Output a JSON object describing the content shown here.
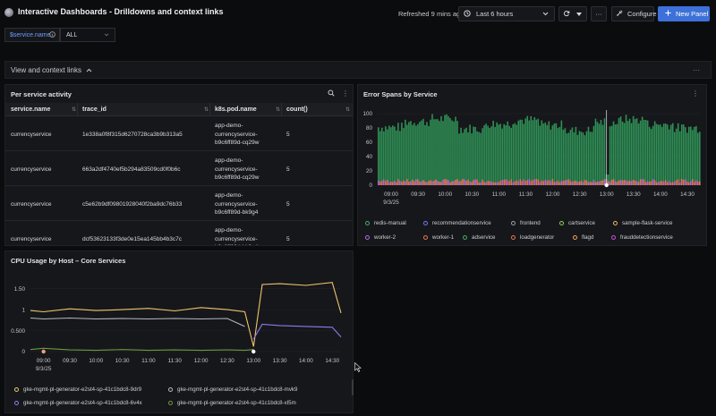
{
  "header": {
    "title": "Interactive Dashboards - Drilldowns and context links",
    "refreshed": "Refreshed 9 mins ago",
    "time_range": "Last 6 hours",
    "configure_label": "Configure",
    "new_panel_label": "New Panel"
  },
  "variables": {
    "label": "$service.name",
    "value": "ALL"
  },
  "row": {
    "title": "View and context links"
  },
  "table_panel": {
    "title": "Per service activity",
    "columns": [
      "service.name",
      "trace_id",
      "k8s.pod.name",
      "count()"
    ],
    "rows": [
      {
        "service": "currencyservice",
        "trace_id": "1e338a0f8f315d6270728ca3b9b313a5",
        "pod": [
          "app-demo-",
          "currencyservice-",
          "b9c6ff89d-cq29w"
        ],
        "count": "5"
      },
      {
        "service": "currencyservice",
        "trace_id": "663a2df4740ef5b294a83509cd0f0b6c",
        "pod": [
          "app-demo-",
          "currencyservice-",
          "b9c6ff89d-cq29w"
        ],
        "count": "5"
      },
      {
        "service": "currencyservice",
        "trace_id": "c5e62b9df09801928040f2ba9dc76b33",
        "pod": [
          "app-demo-",
          "currencyservice-",
          "b9c6ff89d-bk9g4"
        ],
        "count": "5"
      },
      {
        "service": "currencyservice",
        "trace_id": "dcf53623133f3de0e15ea145bb4b3c7c",
        "pod": [
          "app-demo-",
          "currencyservice-",
          "b9c6ff89d-bk9g4"
        ],
        "count": "5"
      }
    ]
  },
  "error_panel": {
    "title": "Error Spans by Service",
    "y_ticks": [
      "100",
      "80",
      "60",
      "40",
      "20",
      "0"
    ],
    "x_ticks": [
      "09:00",
      "09:30",
      "10:00",
      "10:30",
      "11:00",
      "11:30",
      "12:00",
      "12:30",
      "13:00",
      "13:30",
      "14:00",
      "14:30"
    ],
    "x_date": "9/3/25",
    "legend": [
      {
        "name": "redis-manual",
        "color": "#3fae62"
      },
      {
        "name": "recommendationservice",
        "color": "#6e7cf0"
      },
      {
        "name": "frontend",
        "color": "#9aa0a8"
      },
      {
        "name": "cartservice",
        "color": "#8fd14f"
      },
      {
        "name": "sample-flask-service",
        "color": "#f2b25c"
      },
      {
        "name": "worker-2",
        "color": "#b06be0"
      },
      {
        "name": "worker-1",
        "color": "#e8745a"
      },
      {
        "name": "adservice",
        "color": "#3fae62"
      },
      {
        "name": "loadgenerator",
        "color": "#e8745a"
      },
      {
        "name": "flagd",
        "color": "#f2a05a"
      },
      {
        "name": "frauddetectionservice",
        "color": "#c84fd8"
      }
    ]
  },
  "cpu_panel": {
    "title": "CPU Usage by Host – Core Services",
    "y_ticks": [
      "1.50",
      "1",
      "0.500",
      "0"
    ],
    "x_ticks": [
      "09:00",
      "09:30",
      "10:00",
      "10:30",
      "11:00",
      "11:30",
      "12:00",
      "12:30",
      "13:00",
      "13:30",
      "14:00",
      "14:30"
    ],
    "x_date": "9/3/25",
    "legend": [
      {
        "name": "gke-mgmt-pl-generator-e2st4-sp-41c1bdc8-9dr9",
        "color": "#f0c46a"
      },
      {
        "name": "gke-mgmt-pl-generator-e2st4-sp-41c1bdc8-mvk9",
        "color": "#b6b8be"
      },
      {
        "name": "gke-mgmt-pl-generator-e2st4-sp-41c1bdc8-6v4x",
        "color": "#8a7cf0"
      },
      {
        "name": "gke-mgmt-pl-generator-e2st4-sp-41c1bdc8-xl5m",
        "color": "#6b9a3e"
      }
    ]
  },
  "chart_data": [
    {
      "type": "bar",
      "title": "Error Spans by Service",
      "xlabel": "",
      "ylabel": "",
      "ylim": [
        0,
        100
      ],
      "x_range": [
        "08:45",
        "14:45"
      ],
      "series_summary": "dense stacked bars, mostly 70-95, dip near 13:00",
      "typical_values": [
        80,
        88,
        92,
        78,
        85,
        90,
        83,
        75,
        87,
        91,
        84,
        79
      ]
    },
    {
      "type": "line",
      "title": "CPU Usage by Host – Core Services",
      "x": [
        "08:45",
        "09:00",
        "09:30",
        "10:00",
        "10:30",
        "11:00",
        "11:30",
        "12:00",
        "12:30",
        "12:50",
        "13:00",
        "13:10",
        "13:30",
        "14:00",
        "14:30",
        "14:40"
      ],
      "ylim": [
        0,
        1.75
      ],
      "series": [
        {
          "name": "gke-mgmt-pl-generator-e2st4-sp-41c1bdc8-9dr9",
          "values": [
            0.98,
            0.95,
            1.02,
            0.98,
            1.0,
            1.03,
            0.97,
            1.05,
            1.0,
            0.95,
            0.12,
            1.6,
            1.62,
            1.58,
            1.65,
            0.92
          ]
        },
        {
          "name": "gke-mgmt-pl-generator-e2st4-sp-41c1bdc8-mvk9",
          "values": [
            0.8,
            0.78,
            0.8,
            0.78,
            0.79,
            0.78,
            0.79,
            0.78,
            0.79,
            0.6,
            0.0,
            0.0,
            0.0,
            0.0,
            0.0,
            0.0
          ]
        },
        {
          "name": "gke-mgmt-pl-generator-e2st4-sp-41c1bdc8-6v4x",
          "values": [
            0.0,
            0.0,
            0.0,
            0.0,
            0.0,
            0.0,
            0.0,
            0.0,
            0.0,
            0.0,
            0.3,
            0.65,
            0.62,
            0.6,
            0.58,
            0.35
          ]
        },
        {
          "name": "gke-mgmt-pl-generator-e2st4-sp-41c1bdc8-xl5m",
          "values": [
            0.05,
            0.08,
            0.04,
            0.03,
            0.05,
            0.03,
            0.04,
            0.03,
            0.04,
            0.03,
            0.05,
            0.0,
            0.0,
            0.0,
            0.0,
            0.0
          ]
        }
      ]
    }
  ]
}
